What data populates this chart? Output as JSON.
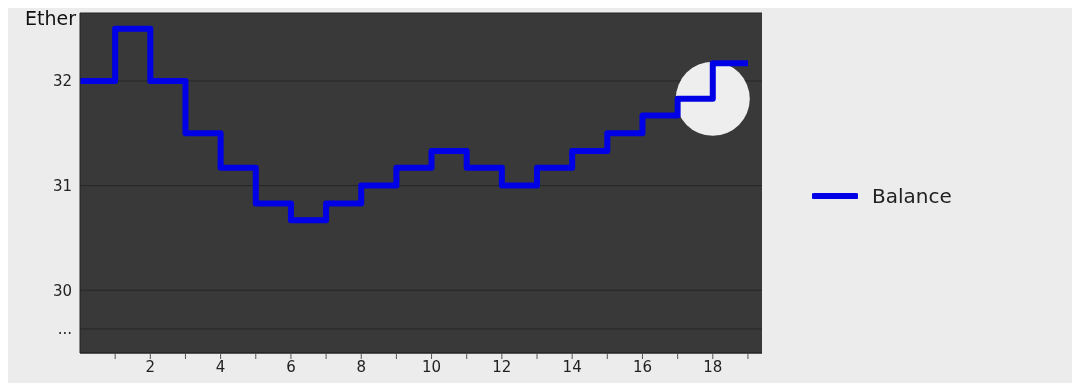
{
  "chart_data": {
    "type": "step",
    "ylabel": "Ether",
    "x": [
      0,
      1,
      2,
      3,
      4,
      5,
      6,
      7,
      8,
      9,
      10,
      11,
      12,
      13,
      14,
      15,
      16,
      17,
      18,
      19
    ],
    "series": [
      {
        "name": "Balance",
        "color": "#0000e6",
        "values": [
          32,
          32.5,
          32,
          31.5,
          31.17,
          30.83,
          30.67,
          30.83,
          31,
          31.17,
          31.33,
          31.17,
          31,
          31.17,
          31.33,
          31.5,
          31.67,
          31.83,
          32.17,
          32.17
        ]
      }
    ],
    "xlim": [
      0,
      19.4
    ],
    "xticks": [
      {
        "value": 1,
        "label": null
      },
      2,
      {
        "value": 3,
        "label": null
      },
      4,
      {
        "value": 5,
        "label": null
      },
      6,
      {
        "value": 7,
        "label": null
      },
      8,
      {
        "value": 9,
        "label": null
      },
      10,
      {
        "value": 11,
        "label": null
      },
      12,
      {
        "value": 13,
        "label": null
      },
      14,
      {
        "value": 15,
        "label": null
      },
      16,
      {
        "value": 17,
        "label": null
      },
      18,
      {
        "value": 19,
        "label": null
      }
    ],
    "ylim": [
      29.4,
      32.65
    ],
    "yticks": [
      {
        "value": 29.63,
        "label": "..."
      },
      30,
      31,
      32
    ],
    "grid": "y",
    "legend": "right"
  }
}
